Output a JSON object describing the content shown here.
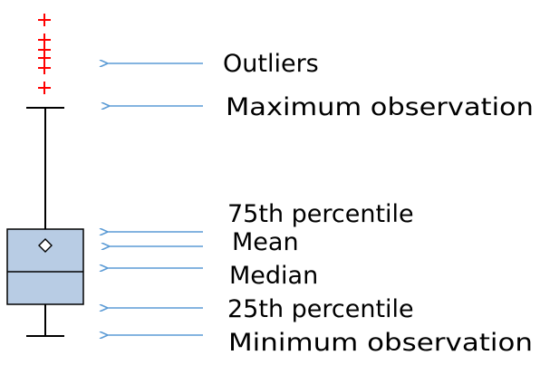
{
  "colors": {
    "outlier": "#ff0000",
    "box_fill": "#b8cce4",
    "box_stroke": "#000000",
    "whisker": "#000000",
    "arrow": "#5b9bd5",
    "text": "#000000"
  },
  "icons": {
    "outlier_marker": "plus-marker",
    "mean_marker": "diamond-marker"
  },
  "labels": {
    "outliers": "Outliers",
    "maximum": "Maximum observation",
    "p75": "75th percentile",
    "mean": "Mean",
    "median": "Median",
    "p25": "25th percentile",
    "minimum": "Minimum observation"
  }
}
